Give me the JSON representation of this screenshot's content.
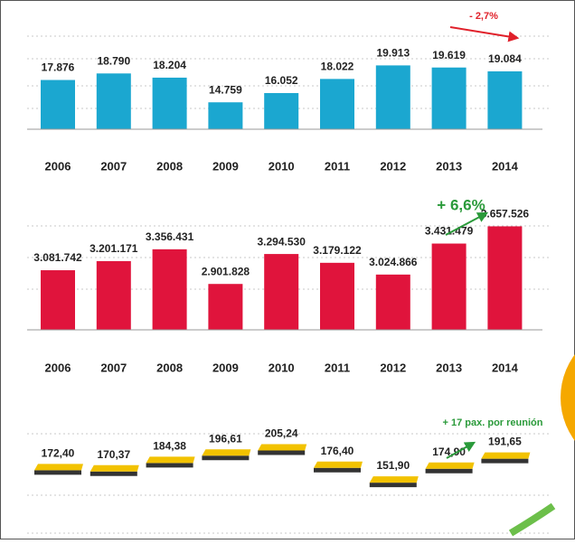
{
  "chart_data": [
    {
      "type": "bar",
      "color": "#1ba7d0",
      "categories": [
        "2006",
        "2007",
        "2008",
        "2009",
        "2010",
        "2011",
        "2012",
        "2013",
        "2014"
      ],
      "values": [
        17876,
        18790,
        18204,
        14759,
        16052,
        18022,
        19913,
        19619,
        19084
      ],
      "value_labels": [
        "17.876",
        "18.790",
        "18.204",
        "14.759",
        "16.052",
        "18.022",
        "19.913",
        "19.619",
        "19.084"
      ],
      "ylim": [
        11000,
        24000
      ],
      "annotation": "- 2,7%",
      "annotation_color": "#e0202a"
    },
    {
      "type": "bar",
      "color": "#e0143c",
      "categories": [
        "2006",
        "2007",
        "2008",
        "2009",
        "2010",
        "2011",
        "2012",
        "2013",
        "2014"
      ],
      "values": [
        3081742,
        3201171,
        3356431,
        2901828,
        3294530,
        3179122,
        3024866,
        3431479,
        3657526
      ],
      "value_labels": [
        "3.081.742",
        "3.201.171",
        "3.356.431",
        "2.901.828",
        "3.294.530",
        "3.179.122",
        "3.024.866",
        "3.431.479",
        "3.657.526"
      ],
      "ylim": [
        2300000,
        3900000
      ],
      "annotation": "+ 6,6%",
      "annotation_color": "#2a9a3a"
    },
    {
      "type": "scatter",
      "color": "#f2c200",
      "values": [
        172.4,
        170.37,
        184.38,
        196.61,
        205.24,
        176.4,
        151.9,
        174.9,
        191.65
      ],
      "value_labels": [
        "172,40",
        "170,37",
        "184,38",
        "196,61",
        "205,24",
        "176,40",
        "151,90",
        "174,90",
        "191,65"
      ],
      "ylim": [
        140,
        215
      ],
      "annotation": "+ 17 pax. por reunión",
      "annotation_color": "#2a9a3a"
    }
  ]
}
